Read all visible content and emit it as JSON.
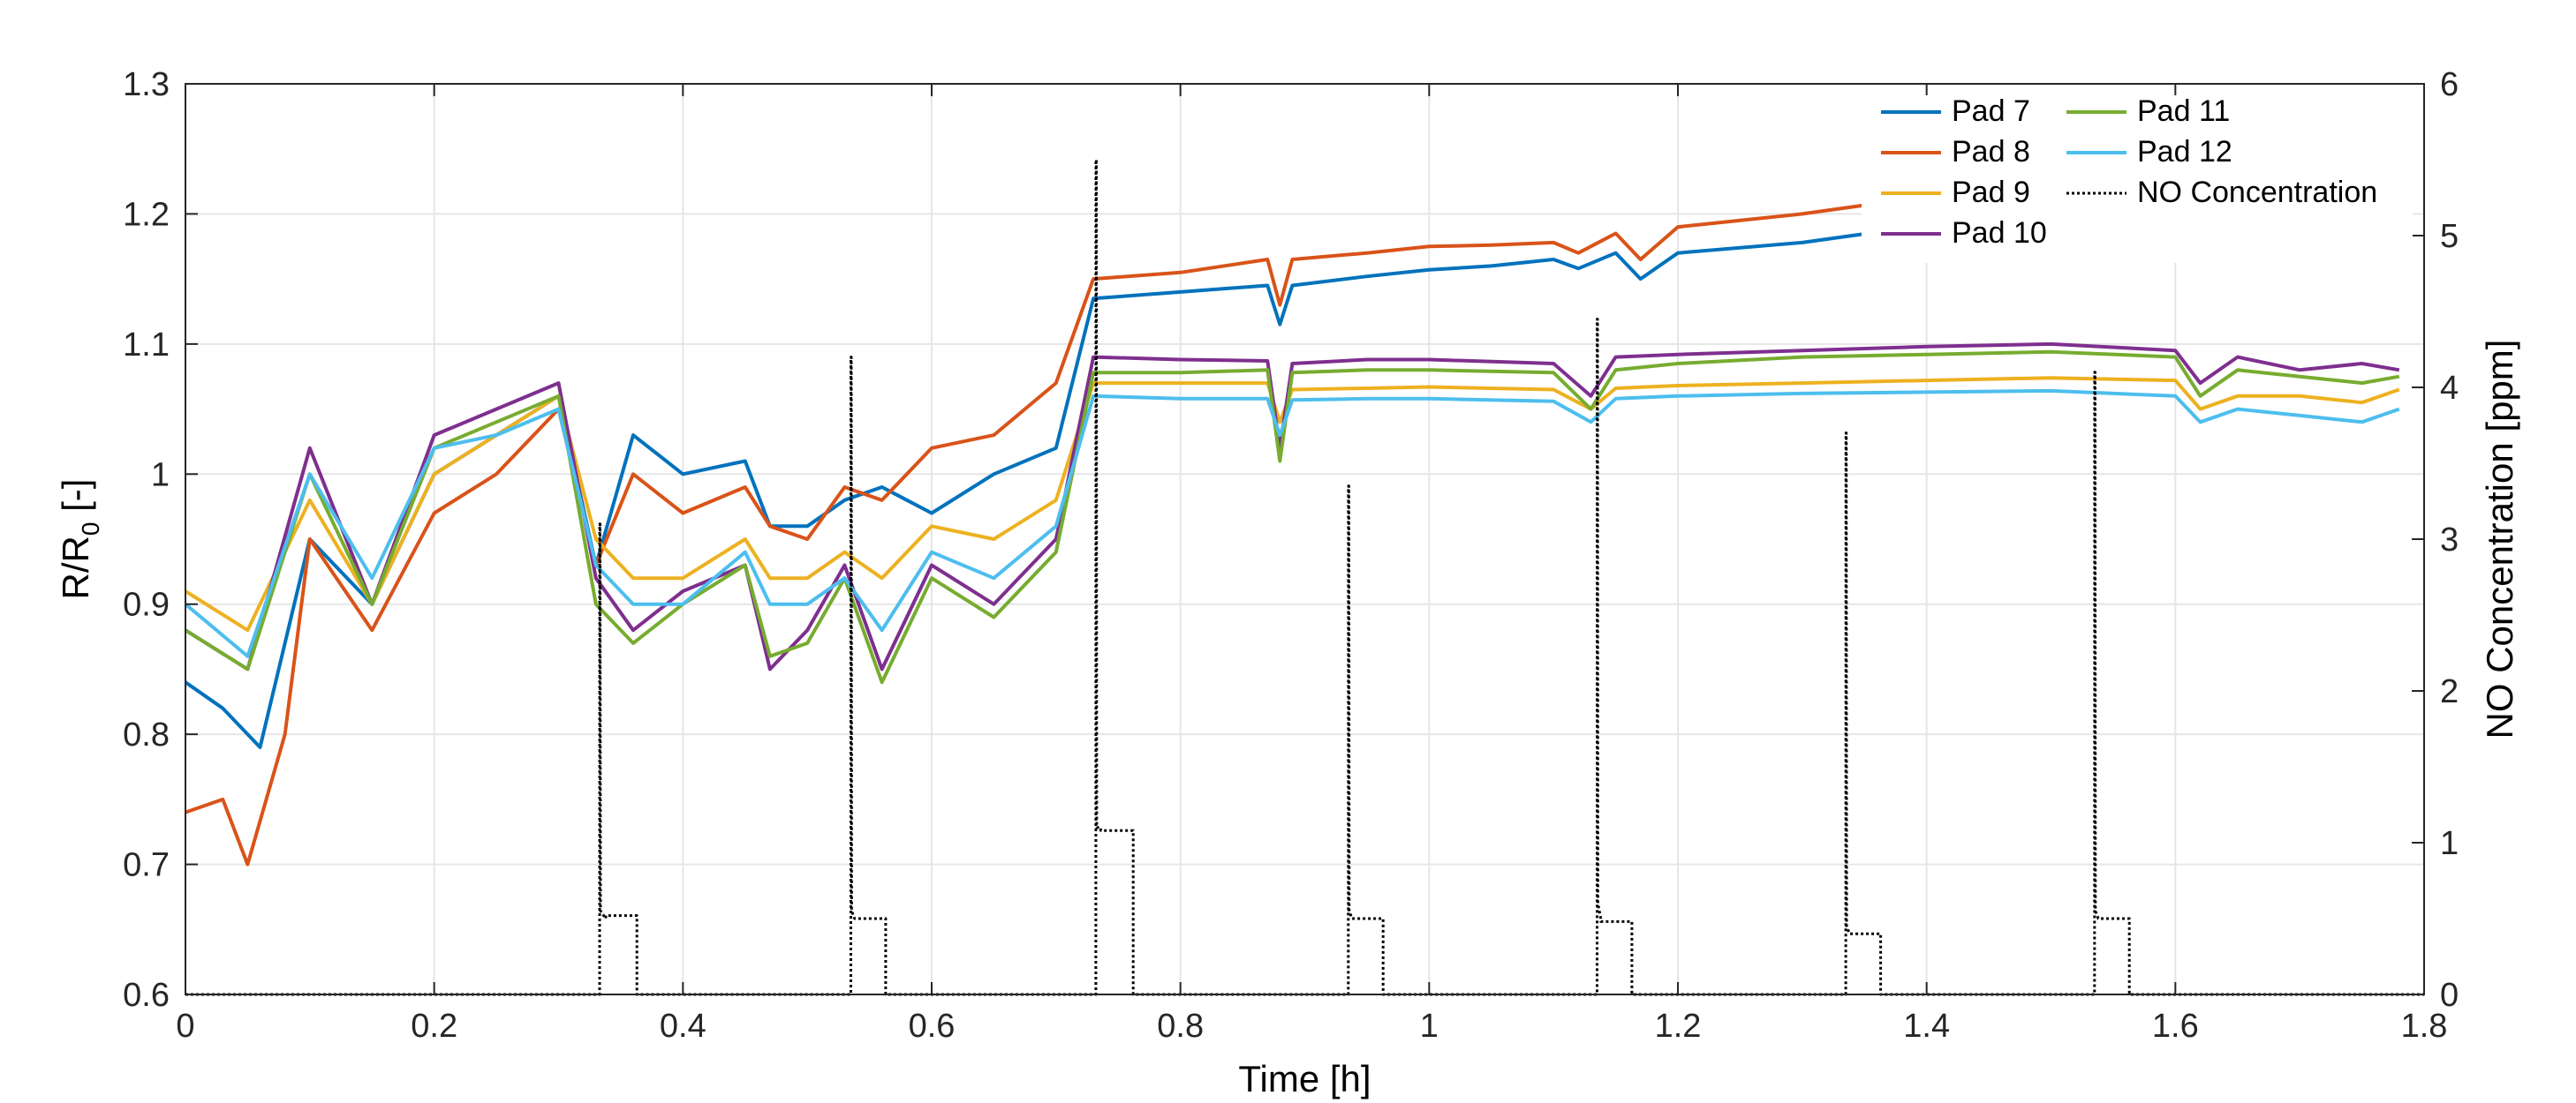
{
  "chart_data": {
    "type": "line",
    "xlabel": "Time [h]",
    "ylabel_main": "R/R",
    "ylabel_sub": "0",
    "ylabel_unit": " [-]",
    "ylabel_right": "NO Concentration [ppm]",
    "xlim": [
      0,
      1.8
    ],
    "ylim": [
      0.6,
      1.3
    ],
    "ylim_right": [
      0,
      6
    ],
    "x_ticks": [
      "0",
      "0.2",
      "0.4",
      "0.6",
      "0.8",
      "1",
      "1.2",
      "1.4",
      "1.6",
      "1.8"
    ],
    "y_ticks": [
      "0.6",
      "0.7",
      "0.8",
      "0.9",
      "1",
      "1.1",
      "1.2",
      "1.3"
    ],
    "y_ticks_right": [
      "0",
      "1",
      "2",
      "3",
      "4",
      "5",
      "6"
    ],
    "grid": true,
    "legend_position": "top-right",
    "series": [
      {
        "name": "Pad 7",
        "color": "#0072BD",
        "x": [
          0,
          0.03,
          0.06,
          0.1,
          0.15,
          0.2,
          0.25,
          0.3,
          0.33,
          0.36,
          0.4,
          0.45,
          0.47,
          0.5,
          0.53,
          0.56,
          0.6,
          0.65,
          0.7,
          0.73,
          0.8,
          0.87,
          0.88,
          0.89,
          0.95,
          1.0,
          1.05,
          1.1,
          1.12,
          1.15,
          1.17,
          1.2,
          1.3,
          1.36
        ],
        "values": [
          0.84,
          0.82,
          0.79,
          0.95,
          0.9,
          1.0,
          1.03,
          1.06,
          0.93,
          1.03,
          1.0,
          1.01,
          0.96,
          0.96,
          0.98,
          0.99,
          0.97,
          1.0,
          1.02,
          1.135,
          1.14,
          1.145,
          1.115,
          1.145,
          1.152,
          1.157,
          1.16,
          1.165,
          1.158,
          1.17,
          1.15,
          1.17,
          1.178,
          1.186
        ]
      },
      {
        "name": "Pad 8",
        "color": "#D95319",
        "x": [
          0,
          0.03,
          0.05,
          0.08,
          0.1,
          0.15,
          0.2,
          0.25,
          0.3,
          0.33,
          0.36,
          0.4,
          0.45,
          0.47,
          0.5,
          0.53,
          0.56,
          0.6,
          0.65,
          0.7,
          0.73,
          0.8,
          0.87,
          0.88,
          0.89,
          0.95,
          1.0,
          1.05,
          1.1,
          1.12,
          1.15,
          1.17,
          1.2,
          1.3,
          1.36
        ],
        "values": [
          0.74,
          0.75,
          0.7,
          0.8,
          0.95,
          0.88,
          0.97,
          1.0,
          1.05,
          0.93,
          1.0,
          0.97,
          0.99,
          0.96,
          0.95,
          0.99,
          0.98,
          1.02,
          1.03,
          1.07,
          1.15,
          1.155,
          1.165,
          1.13,
          1.165,
          1.17,
          1.175,
          1.176,
          1.178,
          1.17,
          1.185,
          1.165,
          1.19,
          1.2,
          1.208
        ]
      },
      {
        "name": "Pad 9",
        "color": "#EDB120",
        "x": [
          0,
          0.05,
          0.1,
          0.15,
          0.2,
          0.25,
          0.3,
          0.33,
          0.36,
          0.4,
          0.45,
          0.47,
          0.5,
          0.53,
          0.56,
          0.6,
          0.65,
          0.7,
          0.73,
          0.8,
          0.87,
          0.88,
          0.89,
          0.95,
          1.0,
          1.1,
          1.13,
          1.15,
          1.2,
          1.3,
          1.4,
          1.5,
          1.6,
          1.62,
          1.65,
          1.7,
          1.75,
          1.78
        ],
        "values": [
          0.91,
          0.88,
          0.98,
          0.9,
          1.0,
          1.03,
          1.06,
          0.95,
          0.92,
          0.92,
          0.95,
          0.92,
          0.92,
          0.94,
          0.92,
          0.96,
          0.95,
          0.98,
          1.07,
          1.07,
          1.07,
          1.04,
          1.065,
          1.066,
          1.067,
          1.065,
          1.05,
          1.066,
          1.068,
          1.07,
          1.072,
          1.074,
          1.072,
          1.05,
          1.06,
          1.06,
          1.055,
          1.065
        ]
      },
      {
        "name": "Pad 10",
        "color": "#7E2F8E",
        "x": [
          0,
          0.05,
          0.1,
          0.15,
          0.2,
          0.25,
          0.3,
          0.33,
          0.36,
          0.4,
          0.45,
          0.47,
          0.5,
          0.53,
          0.56,
          0.6,
          0.65,
          0.7,
          0.73,
          0.8,
          0.87,
          0.88,
          0.89,
          0.95,
          1.0,
          1.1,
          1.13,
          1.15,
          1.2,
          1.3,
          1.4,
          1.5,
          1.6,
          1.62,
          1.65,
          1.7,
          1.75,
          1.78
        ],
        "values": [
          0.88,
          0.85,
          1.02,
          0.9,
          1.03,
          1.05,
          1.07,
          0.92,
          0.88,
          0.91,
          0.93,
          0.85,
          0.88,
          0.93,
          0.85,
          0.93,
          0.9,
          0.95,
          1.09,
          1.088,
          1.087,
          1.02,
          1.085,
          1.088,
          1.088,
          1.085,
          1.06,
          1.09,
          1.092,
          1.095,
          1.098,
          1.1,
          1.095,
          1.07,
          1.09,
          1.08,
          1.085,
          1.08
        ]
      },
      {
        "name": "Pad 11",
        "color": "#77AC30",
        "x": [
          0,
          0.05,
          0.1,
          0.15,
          0.2,
          0.25,
          0.3,
          0.33,
          0.36,
          0.4,
          0.45,
          0.47,
          0.5,
          0.53,
          0.56,
          0.6,
          0.65,
          0.7,
          0.73,
          0.8,
          0.87,
          0.88,
          0.89,
          0.95,
          1.0,
          1.1,
          1.13,
          1.15,
          1.2,
          1.3,
          1.4,
          1.5,
          1.6,
          1.62,
          1.65,
          1.7,
          1.75,
          1.78
        ],
        "values": [
          0.88,
          0.85,
          1.0,
          0.9,
          1.02,
          1.04,
          1.06,
          0.9,
          0.87,
          0.9,
          0.93,
          0.86,
          0.87,
          0.92,
          0.84,
          0.92,
          0.89,
          0.94,
          1.078,
          1.078,
          1.08,
          1.01,
          1.078,
          1.08,
          1.08,
          1.078,
          1.05,
          1.08,
          1.085,
          1.09,
          1.092,
          1.094,
          1.09,
          1.06,
          1.08,
          1.075,
          1.07,
          1.075
        ]
      },
      {
        "name": "Pad 12",
        "color": "#4DBEEE",
        "x": [
          0,
          0.05,
          0.1,
          0.15,
          0.2,
          0.25,
          0.3,
          0.33,
          0.36,
          0.4,
          0.45,
          0.47,
          0.5,
          0.53,
          0.56,
          0.6,
          0.65,
          0.7,
          0.73,
          0.8,
          0.87,
          0.88,
          0.89,
          0.95,
          1.0,
          1.1,
          1.13,
          1.15,
          1.2,
          1.3,
          1.4,
          1.5,
          1.6,
          1.62,
          1.65,
          1.7,
          1.75,
          1.78
        ],
        "values": [
          0.9,
          0.86,
          1.0,
          0.92,
          1.02,
          1.03,
          1.05,
          0.93,
          0.9,
          0.9,
          0.94,
          0.9,
          0.9,
          0.92,
          0.88,
          0.94,
          0.92,
          0.96,
          1.06,
          1.058,
          1.058,
          1.03,
          1.057,
          1.058,
          1.058,
          1.056,
          1.04,
          1.058,
          1.06,
          1.062,
          1.063,
          1.064,
          1.06,
          1.04,
          1.05,
          1.045,
          1.04,
          1.05
        ]
      },
      {
        "name": "NO Concentration",
        "color": "#000000",
        "dash": "dotted",
        "axis": "right",
        "x": [
          0,
          0.333,
          0.3331,
          0.3334,
          0.3337,
          0.338,
          0.338,
          0.363,
          0.363,
          0.535,
          0.5351,
          0.5354,
          0.5357,
          0.538,
          0.538,
          0.563,
          0.563,
          0.732,
          0.7321,
          0.7324,
          0.7327,
          0.736,
          0.736,
          0.762,
          0.762,
          0.935,
          0.9351,
          0.9354,
          0.9357,
          0.938,
          0.938,
          0.963,
          0.963,
          1.135,
          1.1351,
          1.1354,
          1.1357,
          1.138,
          1.138,
          1.163,
          1.163,
          1.335,
          1.3351,
          1.3354,
          1.3357,
          1.338,
          1.338,
          1.363,
          1.363,
          1.535,
          1.5351,
          1.5354,
          1.5357,
          1.538,
          1.538,
          1.563,
          1.563,
          1.8
        ],
        "values": [
          0,
          0,
          3.1,
          3.1,
          0.55,
          0.5,
          0.52,
          0.52,
          0,
          0,
          4.2,
          4.2,
          0.55,
          0.5,
          0.5,
          0.5,
          0,
          0,
          5.5,
          5.5,
          1.1,
          1.1,
          1.08,
          1.08,
          0,
          0,
          3.35,
          3.35,
          0.55,
          0.5,
          0.5,
          0.5,
          0,
          0,
          4.45,
          4.45,
          0.6,
          0.5,
          0.48,
          0.48,
          0,
          0,
          3.7,
          3.7,
          0.45,
          0.4,
          0.4,
          0.4,
          0,
          0,
          4.1,
          4.1,
          0.55,
          0.5,
          0.5,
          0.5,
          0,
          0
        ]
      }
    ]
  }
}
